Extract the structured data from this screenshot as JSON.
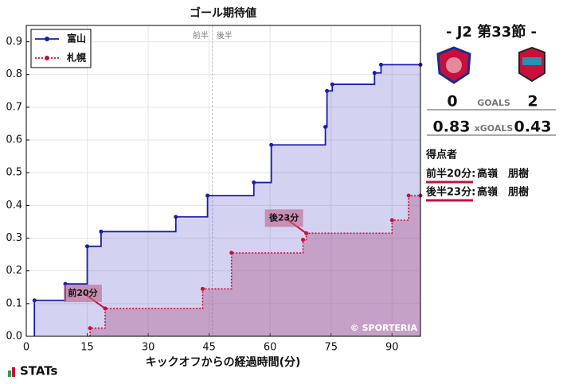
{
  "chart_data": {
    "type": "step",
    "title": "ゴール期待値",
    "x_label": "キックオフからの経過時間(分)",
    "xlim": [
      0,
      97
    ],
    "ylim": [
      0,
      0.95
    ],
    "xticks": [
      0,
      15,
      30,
      45,
      60,
      75,
      90
    ],
    "yticks": [
      {
        "value": 0,
        "label": "0.0"
      },
      0.1,
      0.2,
      0.3,
      0.4,
      0.5,
      0.6,
      0.7,
      0.8,
      0.9
    ],
    "grid": true,
    "legend": "upper left",
    "halftime": 45.8,
    "half_labels": [
      "前半",
      "後半"
    ],
    "series": [
      {
        "name": "富山",
        "color": "#1c1ca8",
        "fill": "rgba(110,110,210,0.3)",
        "dash": false,
        "x": [
          2,
          9.6,
          15,
          18.4,
          36.8,
          44.6,
          56,
          60.3,
          73.6,
          74,
          75.3,
          85.7,
          87.3,
          97
        ],
        "values": [
          0.11,
          0.16,
          0.275,
          0.32,
          0.365,
          0.43,
          0.47,
          0.585,
          0.64,
          0.75,
          0.77,
          0.805,
          0.83,
          0.83
        ]
      },
      {
        "name": "札幌",
        "color": "#c8103c",
        "fill": "rgba(175,70,120,0.35)",
        "dash": true,
        "x": [
          15.7,
          19.4,
          43.4,
          50.5,
          68.1,
          68.9,
          90,
          94.1,
          97
        ],
        "values": [
          0.025,
          0.085,
          0.145,
          0.255,
          0.295,
          0.315,
          0.355,
          0.43,
          0.43
        ]
      }
    ],
    "annotations": [
      {
        "label": "前20分",
        "x": 19.4,
        "y": 0.085
      },
      {
        "label": "後23分",
        "x": 68.9,
        "y": 0.315
      }
    ],
    "watermark": "© SPORTERIA"
  },
  "match": {
    "round": "- J2 第33節 -",
    "home_goals": 0,
    "away_goals": 2,
    "goals_label": "GOALS",
    "home_xg": 0.83,
    "away_xg": 0.43,
    "xg_label": "xGOALS",
    "scorers_title": "得点者",
    "scorers": [
      {
        "time": "前半20分:",
        "name": "高嶺　朋樹"
      },
      {
        "time": "後半23分:",
        "name": "高嶺　朋樹"
      }
    ]
  },
  "brand": "STATs"
}
